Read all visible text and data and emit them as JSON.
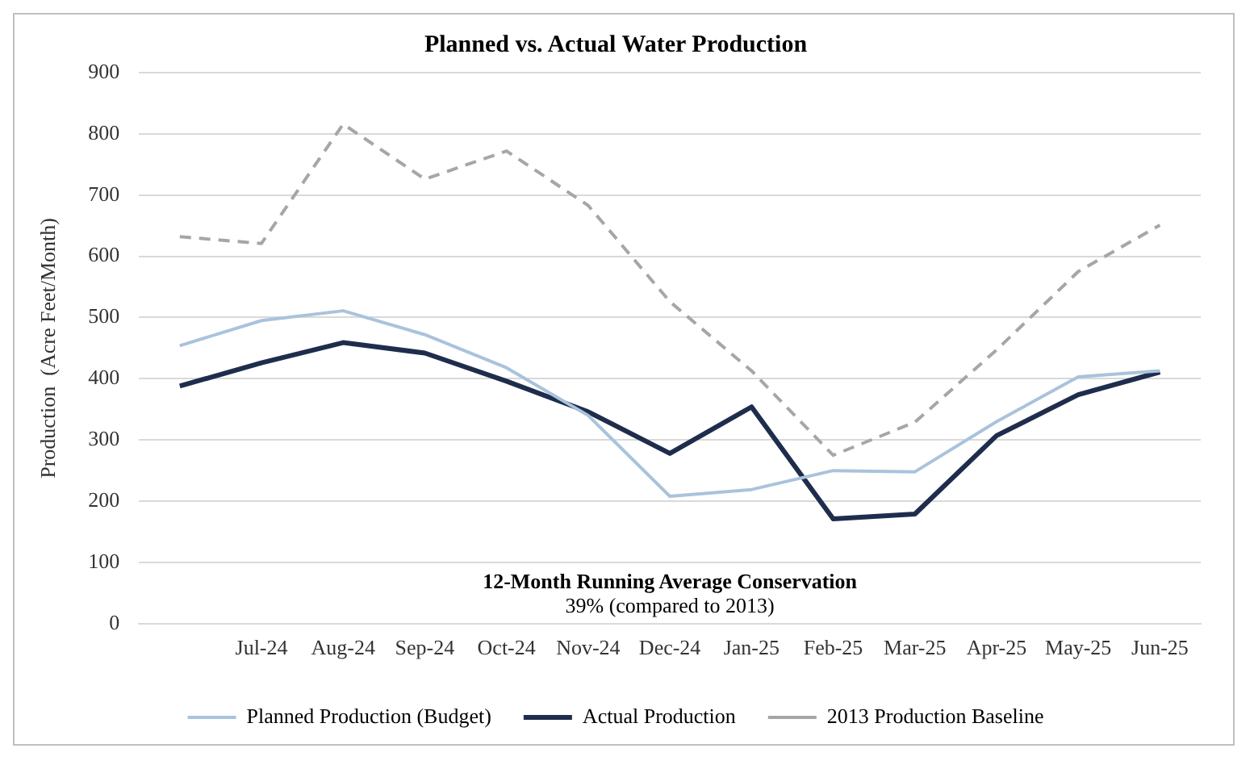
{
  "chart_data": {
    "type": "line",
    "title": "Planned vs. Actual Water Production",
    "ylabel": "Production  (Acre Feet/Month)",
    "categories": [
      null,
      "Jul-24",
      "Aug-24",
      "Sep-24",
      "Oct-24",
      "Nov-24",
      "Dec-24",
      "Jan-25",
      "Feb-25",
      "Mar-25",
      "Apr-25",
      "May-25",
      "Jun-25"
    ],
    "series": [
      {
        "name": "Planned Production (Budget)",
        "color": "#a9c3dc",
        "line_style": "solid",
        "values": [
          454,
          495,
          511,
          472,
          418,
          340,
          208,
          219,
          250,
          248,
          330,
          403,
          413
        ]
      },
      {
        "name": "Actual Production",
        "color": "#1f2d4d",
        "line_style": "solid",
        "values": [
          388,
          426,
          459,
          442,
          396,
          346,
          278,
          354,
          171,
          179,
          307,
          374,
          411
        ]
      },
      {
        "name": "2013 Production Baseline",
        "color": "#a6a6a6",
        "line_style": "dashed",
        "values": [
          632,
          621,
          816,
          726,
          772,
          683,
          526,
          413,
          275,
          329,
          447,
          575,
          651
        ]
      }
    ],
    "ylim": [
      0,
      900
    ],
    "yticks": [
      0,
      100,
      200,
      300,
      400,
      500,
      600,
      700,
      800,
      900
    ],
    "grid": "y",
    "legend": "bottom",
    "marker": "none",
    "annotations": [
      "12-Month Running Average Conservation",
      "39% (compared to 2013)"
    ]
  }
}
